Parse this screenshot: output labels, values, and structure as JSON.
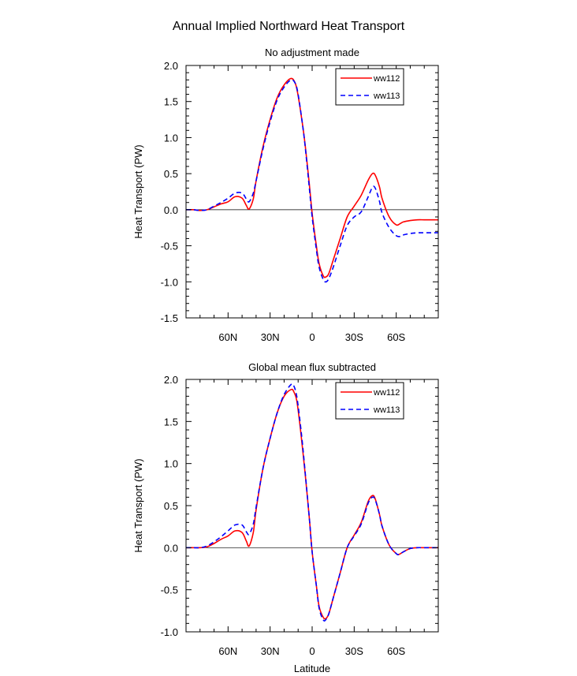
{
  "figure_title": "Annual Implied Northward Heat Transport",
  "chart_data": [
    {
      "type": "line",
      "title": "No adjustment made",
      "xlabel": "",
      "ylabel": "Heat Transport (PW)",
      "xlim": [
        90,
        -90
      ],
      "ylim": [
        -1.5,
        2.0
      ],
      "x_ticks": [
        60,
        30,
        0,
        -30,
        -60
      ],
      "x_tick_labels": [
        "60N",
        "30N",
        "0",
        "30S",
        "60S"
      ],
      "y_ticks": [
        -1.5,
        -1.0,
        -0.5,
        0.0,
        0.5,
        1.0,
        1.5,
        2.0
      ],
      "y_tick_labels": [
        "-1.5",
        "-1.0",
        "-0.5",
        "0.0",
        "0.5",
        "1.0",
        "1.5",
        "2.0"
      ],
      "legend_position": "top-right",
      "series": [
        {
          "name": "ww112",
          "color": "#ff0000",
          "dash": "solid",
          "x": [
            90,
            85,
            80,
            75,
            70,
            65,
            60,
            55,
            50,
            47,
            45,
            42,
            40,
            35,
            30,
            25,
            20,
            15,
            12,
            10,
            7,
            5,
            2,
            0,
            -3,
            -5,
            -8,
            -10,
            -12,
            -15,
            -20,
            -25,
            -30,
            -35,
            -40,
            -43,
            -45,
            -48,
            -50,
            -55,
            -60,
            -63,
            -65,
            -70,
            -75,
            -80,
            -85,
            -90
          ],
          "values": [
            0.0,
            0.0,
            -0.01,
            0.0,
            0.04,
            0.08,
            0.11,
            0.18,
            0.16,
            0.06,
            0.01,
            0.15,
            0.4,
            0.88,
            1.25,
            1.55,
            1.73,
            1.82,
            1.75,
            1.58,
            1.2,
            0.9,
            0.35,
            -0.05,
            -0.5,
            -0.75,
            -0.92,
            -0.93,
            -0.88,
            -0.7,
            -0.4,
            -0.1,
            0.05,
            0.2,
            0.41,
            0.5,
            0.48,
            0.32,
            0.15,
            -0.1,
            -0.21,
            -0.19,
            -0.17,
            -0.15,
            -0.14,
            -0.14,
            -0.14,
            -0.14
          ]
        },
        {
          "name": "ww113",
          "color": "#0000ff",
          "dash": "dashed",
          "x": [
            90,
            85,
            80,
            75,
            70,
            65,
            60,
            55,
            50,
            47,
            45,
            42,
            40,
            35,
            30,
            25,
            20,
            15,
            12,
            10,
            7,
            5,
            2,
            0,
            -3,
            -5,
            -8,
            -10,
            -12,
            -15,
            -20,
            -25,
            -30,
            -35,
            -40,
            -43,
            -45,
            -48,
            -50,
            -55,
            -60,
            -63,
            -65,
            -70,
            -75,
            -80,
            -85,
            -90
          ],
          "values": [
            0.0,
            0.0,
            -0.01,
            0.0,
            0.05,
            0.1,
            0.16,
            0.23,
            0.23,
            0.15,
            0.11,
            0.23,
            0.4,
            0.85,
            1.22,
            1.52,
            1.7,
            1.8,
            1.75,
            1.6,
            1.2,
            0.88,
            0.3,
            -0.1,
            -0.55,
            -0.8,
            -0.97,
            -1.0,
            -0.95,
            -0.8,
            -0.5,
            -0.22,
            -0.1,
            -0.03,
            0.18,
            0.31,
            0.3,
            0.12,
            -0.05,
            -0.25,
            -0.36,
            -0.37,
            -0.35,
            -0.33,
            -0.32,
            -0.32,
            -0.32,
            -0.32
          ]
        }
      ]
    },
    {
      "type": "line",
      "title": "Global mean flux subtracted",
      "xlabel": "Latitude",
      "ylabel": "Heat Transport (PW)",
      "xlim": [
        90,
        -90
      ],
      "ylim": [
        -1.0,
        2.0
      ],
      "x_ticks": [
        60,
        30,
        0,
        -30,
        -60
      ],
      "x_tick_labels": [
        "60N",
        "30N",
        "0",
        "30S",
        "60S"
      ],
      "y_ticks": [
        -1.0,
        -0.5,
        0.0,
        0.5,
        1.0,
        1.5,
        2.0
      ],
      "y_tick_labels": [
        "-1.0",
        "-0.5",
        "0.0",
        "0.5",
        "1.0",
        "1.5",
        "2.0"
      ],
      "legend_position": "top-right",
      "series": [
        {
          "name": "ww112",
          "color": "#ff0000",
          "dash": "solid",
          "x": [
            90,
            85,
            80,
            75,
            70,
            65,
            60,
            55,
            50,
            47,
            45,
            42,
            40,
            35,
            30,
            25,
            20,
            15,
            13,
            11,
            9,
            7,
            5,
            2,
            0,
            -3,
            -5,
            -8,
            -10,
            -12,
            -15,
            -20,
            -25,
            -30,
            -35,
            -40,
            -43,
            -45,
            -48,
            -50,
            -55,
            -60,
            -62,
            -65,
            -70,
            -75,
            -80,
            -85,
            -90
          ],
          "values": [
            0.0,
            0.0,
            0.0,
            0.01,
            0.05,
            0.1,
            0.14,
            0.2,
            0.18,
            0.08,
            0.02,
            0.18,
            0.45,
            0.95,
            1.3,
            1.6,
            1.8,
            1.88,
            1.85,
            1.75,
            1.5,
            1.2,
            0.88,
            0.35,
            -0.05,
            -0.45,
            -0.7,
            -0.83,
            -0.84,
            -0.78,
            -0.6,
            -0.3,
            0.0,
            0.15,
            0.3,
            0.55,
            0.62,
            0.58,
            0.4,
            0.25,
            0.03,
            -0.07,
            -0.08,
            -0.05,
            -0.01,
            0.0,
            0.0,
            0.0,
            0.0
          ]
        },
        {
          "name": "ww113",
          "color": "#0000ff",
          "dash": "dashed",
          "x": [
            90,
            85,
            80,
            75,
            70,
            65,
            60,
            55,
            50,
            47,
            45,
            42,
            40,
            35,
            30,
            25,
            20,
            15,
            13,
            11,
            9,
            7,
            5,
            2,
            0,
            -3,
            -5,
            -8,
            -10,
            -12,
            -15,
            -20,
            -25,
            -30,
            -35,
            -40,
            -43,
            -45,
            -48,
            -50,
            -55,
            -60,
            -62,
            -65,
            -70,
            -75,
            -80,
            -85,
            -90
          ],
          "values": [
            0.0,
            0.0,
            0.0,
            0.02,
            0.07,
            0.13,
            0.2,
            0.27,
            0.27,
            0.19,
            0.16,
            0.28,
            0.48,
            0.95,
            1.3,
            1.6,
            1.82,
            1.94,
            1.92,
            1.8,
            1.55,
            1.25,
            0.9,
            0.35,
            -0.05,
            -0.45,
            -0.72,
            -0.86,
            -0.85,
            -0.78,
            -0.6,
            -0.3,
            0.0,
            0.14,
            0.28,
            0.53,
            0.6,
            0.57,
            0.4,
            0.25,
            0.03,
            -0.07,
            -0.08,
            -0.05,
            -0.01,
            0.0,
            0.0,
            0.0,
            0.0
          ]
        }
      ]
    }
  ]
}
